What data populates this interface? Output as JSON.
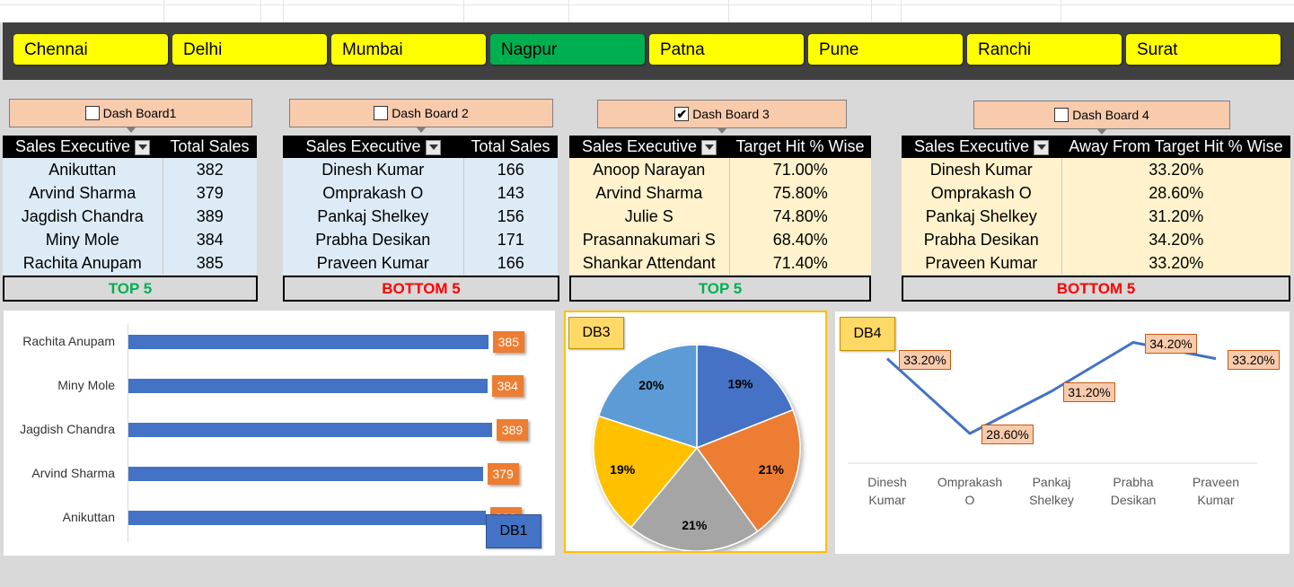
{
  "cities": [
    {
      "label": "Chennai",
      "active": false
    },
    {
      "label": "Delhi",
      "active": false
    },
    {
      "label": "Mumbai",
      "active": false
    },
    {
      "label": "Nagpur",
      "active": true
    },
    {
      "label": "Patna",
      "active": false
    },
    {
      "label": "Pune",
      "active": false
    },
    {
      "label": "Ranchi",
      "active": false
    },
    {
      "label": "Surat",
      "active": false
    }
  ],
  "colors": {
    "city_bg": "#ffff00",
    "city_active": "#00b050",
    "header_bar": "#404040",
    "bar": "#4472c4",
    "data_label": "#ed7d31",
    "top_text": "#00b050",
    "bottom_text": "#ff0000",
    "pie": [
      "#4472c4",
      "#ed7d31",
      "#a5a5a5",
      "#ffc000",
      "#5b9bd5"
    ],
    "line": "#4472c4"
  },
  "dashboards": [
    {
      "button": "Dash Board1",
      "checked": false,
      "headers": [
        "Sales Executive",
        "Total Sales"
      ],
      "rows": [
        [
          "Anikuttan",
          "382"
        ],
        [
          "Arvind Sharma",
          "379"
        ],
        [
          "Jagdish Chandra",
          "389"
        ],
        [
          "Miny Mole",
          "384"
        ],
        [
          "Rachita Anupam",
          "385"
        ]
      ],
      "footer": "TOP 5",
      "footer_color": "#00b050"
    },
    {
      "button": "Dash Board 2",
      "checked": false,
      "headers": [
        "Sales Executive",
        "Total Sales"
      ],
      "rows": [
        [
          "Dinesh Kumar",
          "166"
        ],
        [
          "Omprakash O",
          "143"
        ],
        [
          "Pankaj Shelkey",
          "156"
        ],
        [
          "Prabha Desikan",
          "171"
        ],
        [
          "Praveen Kumar",
          "166"
        ]
      ],
      "footer": "BOTTOM 5",
      "footer_color": "#ff0000"
    },
    {
      "button": "Dash Board 3",
      "checked": true,
      "headers": [
        "Sales Executive",
        "Target Hit % Wise"
      ],
      "rows": [
        [
          "Anoop Narayan",
          "71.00%"
        ],
        [
          "Arvind Sharma",
          "75.80%"
        ],
        [
          "Julie S",
          "74.80%"
        ],
        [
          "Prasannakumari S",
          "68.40%"
        ],
        [
          "Shankar Attendant",
          "71.40%"
        ]
      ],
      "footer": "TOP 5",
      "footer_color": "#00b050"
    },
    {
      "button": "Dash Board 4",
      "checked": false,
      "headers": [
        "Sales Executive",
        "Away From Target Hit % Wise"
      ],
      "rows": [
        [
          "Dinesh Kumar",
          "33.20%"
        ],
        [
          "Omprakash O",
          "28.60%"
        ],
        [
          "Pankaj Shelkey",
          "31.20%"
        ],
        [
          "Prabha Desikan",
          "34.20%"
        ],
        [
          "Praveen Kumar",
          "33.20%"
        ]
      ],
      "footer": "BOTTOM 5",
      "footer_color": "#ff0000"
    }
  ],
  "chart_data": [
    {
      "type": "bar",
      "tag": "DB1",
      "orientation": "horizontal",
      "categories": [
        "Rachita Anupam",
        "Miny Mole",
        "Jagdish Chandra",
        "Arvind Sharma",
        "Anikuttan"
      ],
      "values": [
        385,
        384,
        389,
        379,
        382
      ],
      "data_labels": [
        "385",
        "384",
        "389",
        "379",
        "382"
      ]
    },
    {
      "type": "pie",
      "tag": "DB3",
      "values": [
        19,
        21,
        21,
        19,
        20
      ],
      "data_labels": [
        "19%",
        "21%",
        "21%",
        "19%",
        "20%"
      ]
    },
    {
      "type": "line",
      "tag": "DB4",
      "categories": [
        "Dinesh Kumar",
        "Omprakash O",
        "Pankaj Shelkey",
        "Prabha Desikan",
        "Praveen Kumar"
      ],
      "category_lines": [
        [
          "Dinesh",
          "Kumar"
        ],
        [
          "Omprakash",
          "O"
        ],
        [
          "Pankaj",
          "Shelkey"
        ],
        [
          "Prabha",
          "Desikan"
        ],
        [
          "Praveen",
          "Kumar"
        ]
      ],
      "values": [
        33.2,
        28.6,
        31.2,
        34.2,
        33.2
      ],
      "data_labels": [
        "33.20%",
        "28.60%",
        "31.20%",
        "34.20%",
        "33.20%"
      ],
      "ylim": [
        27,
        35
      ]
    }
  ]
}
